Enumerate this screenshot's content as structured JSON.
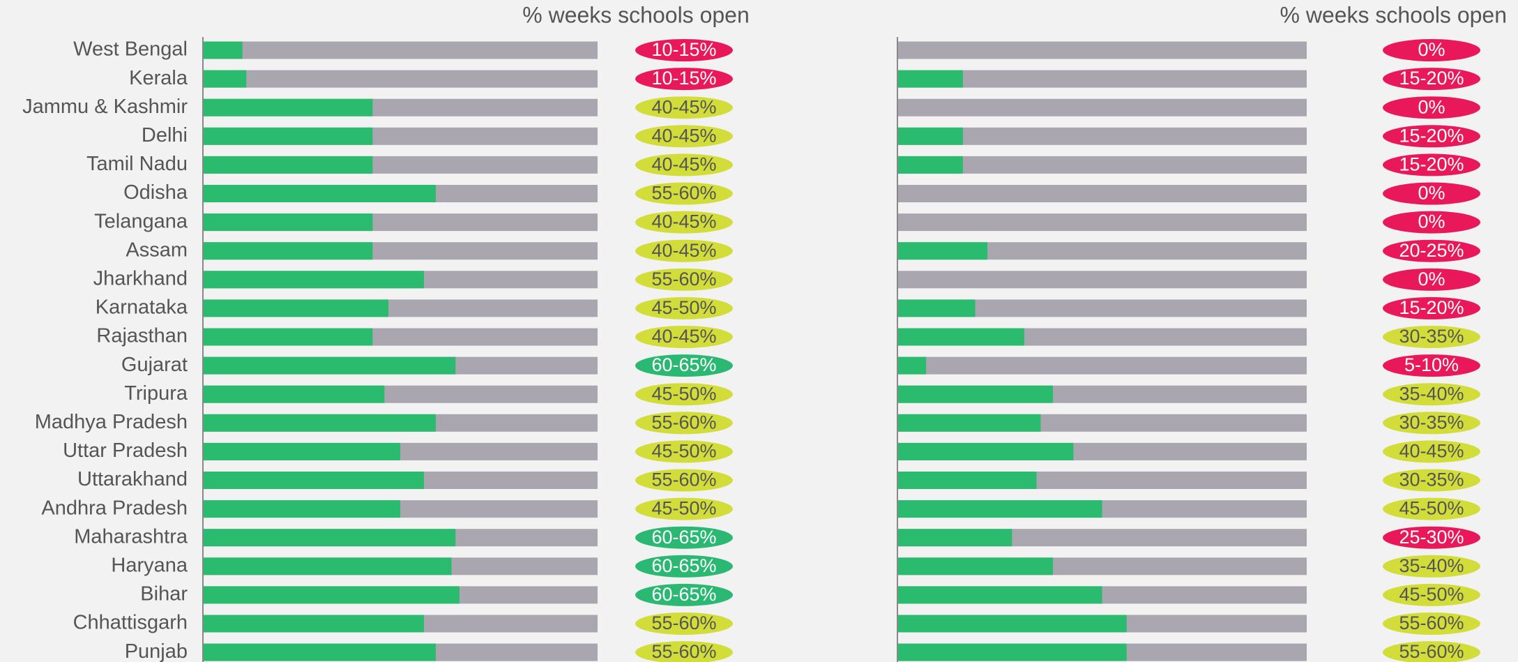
{
  "chart_data": {
    "type": "bar",
    "categories": [
      "West Bengal",
      "Kerala",
      "Jammu & Kashmir",
      "Delhi",
      "Tamil Nadu",
      "Odisha",
      "Telangana",
      "Assam",
      "Jharkhand",
      "Karnataka",
      "Rajasthan",
      "Gujarat",
      "Tripura",
      "Madhya Pradesh",
      "Uttar Pradesh",
      "Uttarakhand",
      "Andhra Pradesh",
      "Maharashtra",
      "Haryana",
      "Bihar",
      "Chhattisgarh",
      "Punjab"
    ],
    "xlim": [
      0,
      100
    ],
    "color": "#2bbb6f",
    "background_color": "#aaa6b0",
    "series": [
      {
        "label_title": "% weeks schools open",
        "values": [
          10,
          11,
          43,
          43,
          43,
          59,
          43,
          43,
          56,
          47,
          43,
          64,
          46,
          59,
          50,
          56,
          50,
          64,
          63,
          65,
          56,
          59
        ],
        "value_labels": [
          "10-15%",
          "10-15%",
          "40-45%",
          "40-45%",
          "40-45%",
          "55-60%",
          "40-45%",
          "40-45%",
          "55-60%",
          "45-50%",
          "40-45%",
          "60-65%",
          "45-50%",
          "55-60%",
          "45-50%",
          "55-60%",
          "45-50%",
          "60-65%",
          "60-65%",
          "60-65%",
          "55-60%",
          "55-60%"
        ],
        "label_colors": [
          "#e8185a",
          "#e8185a",
          "#d2dd3a",
          "#d2dd3a",
          "#d2dd3a",
          "#d2dd3a",
          "#d2dd3a",
          "#d2dd3a",
          "#d2dd3a",
          "#d2dd3a",
          "#d2dd3a",
          "#2bb873",
          "#d2dd3a",
          "#d2dd3a",
          "#d2dd3a",
          "#d2dd3a",
          "#d2dd3a",
          "#2bb873",
          "#2bb873",
          "#2bb873",
          "#d2dd3a",
          "#d2dd3a"
        ]
      },
      {
        "label_title": "% weeks schools open",
        "values": [
          0,
          16,
          0,
          16,
          16,
          0,
          0,
          22,
          0,
          19,
          31,
          7,
          38,
          35,
          43,
          34,
          50,
          28,
          38,
          50,
          56,
          56
        ],
        "value_labels": [
          "0%",
          "15-20%",
          "0%",
          "15-20%",
          "15-20%",
          "0%",
          "0%",
          "20-25%",
          "0%",
          "15-20%",
          "30-35%",
          "5-10%",
          "35-40%",
          "30-35%",
          "40-45%",
          "30-35%",
          "45-50%",
          "25-30%",
          "35-40%",
          "45-50%",
          "55-60%",
          "55-60%"
        ],
        "label_colors": [
          "#e8185a",
          "#e8185a",
          "#e8185a",
          "#e8185a",
          "#e8185a",
          "#e8185a",
          "#e8185a",
          "#e8185a",
          "#e8185a",
          "#e8185a",
          "#d2dd3a",
          "#e8185a",
          "#d2dd3a",
          "#d2dd3a",
          "#d2dd3a",
          "#d2dd3a",
          "#d2dd3a",
          "#e8185a",
          "#d2dd3a",
          "#d2dd3a",
          "#d2dd3a",
          "#d2dd3a"
        ]
      }
    ]
  }
}
